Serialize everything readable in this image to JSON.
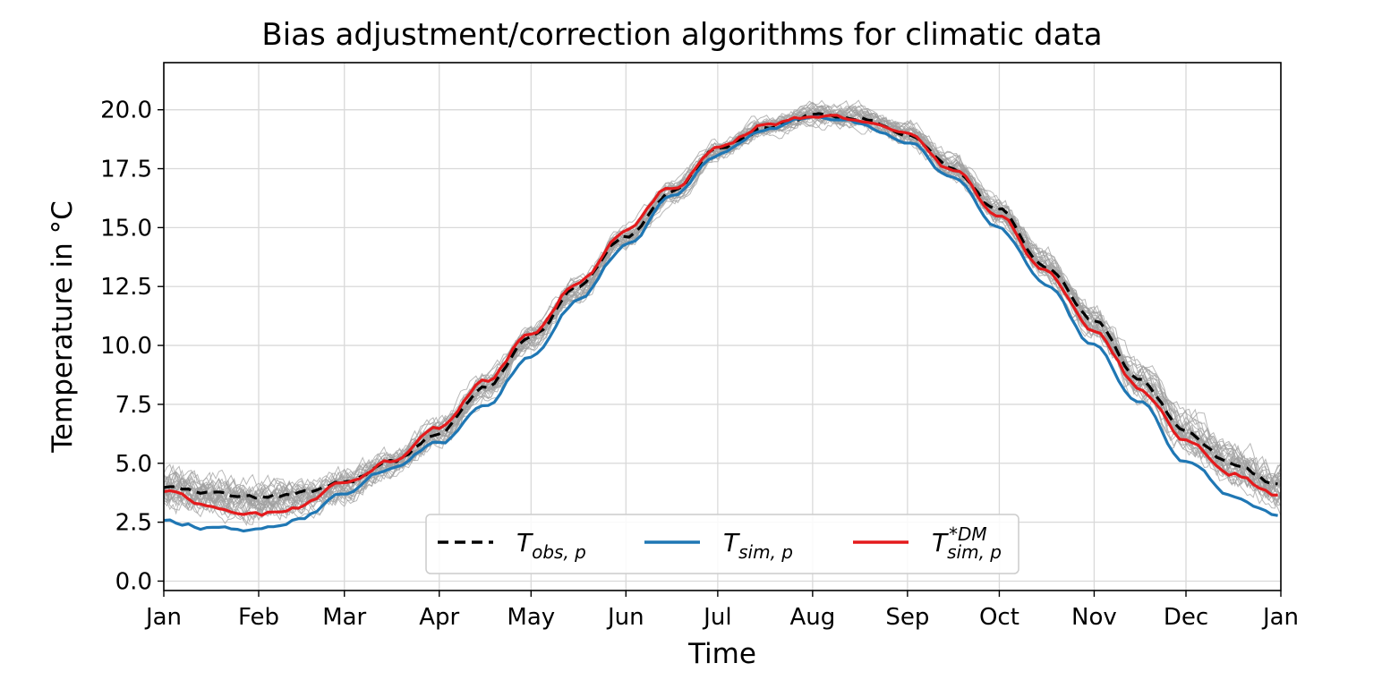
{
  "chart_data": {
    "type": "line",
    "title": "Bias adjustment/correction algorithms for climatic data",
    "xlabel": "Time",
    "ylabel": "Temperature in °C",
    "x_ticks": [
      "Jan",
      "Feb",
      "Mar",
      "Apr",
      "May",
      "Jun",
      "Jul",
      "Aug",
      "Sep",
      "Oct",
      "Nov",
      "Dec",
      "Jan"
    ],
    "x_tick_days": [
      1,
      32,
      60,
      91,
      121,
      152,
      182,
      213,
      244,
      274,
      305,
      335,
      366
    ],
    "xlim": [
      1,
      366
    ],
    "ylim": [
      -0.4,
      22.0
    ],
    "y_ticks": [
      0.0,
      2.5,
      5.0,
      7.5,
      10.0,
      12.5,
      15.0,
      17.5,
      20.0
    ],
    "y_tick_labels": [
      "0.0",
      "2.5",
      "5.0",
      "7.5",
      "10.0",
      "12.5",
      "15.0",
      "17.5",
      "20.0"
    ],
    "grid": true,
    "legend_position": "bottom-center",
    "x_day_keys": [
      1,
      15,
      32,
      46,
      60,
      75,
      91,
      106,
      121,
      136,
      152,
      167,
      182,
      198,
      213,
      228,
      244,
      259,
      274,
      289,
      305,
      320,
      335,
      350,
      366
    ],
    "series": [
      {
        "name": "T",
        "subscript": "obs, p",
        "superscript": "",
        "color": "#000000",
        "dash": "12,7",
        "width": 3.2,
        "values": [
          4.0,
          3.7,
          3.5,
          3.7,
          4.2,
          5.0,
          6.3,
          8.2,
          10.3,
          12.4,
          14.6,
          16.5,
          18.3,
          19.3,
          19.8,
          19.7,
          19.0,
          17.6,
          15.7,
          13.4,
          11.0,
          8.5,
          6.3,
          5.0,
          4.0
        ]
      },
      {
        "name": "T",
        "subscript": "sim, p",
        "superscript": "",
        "color": "#1f77b4",
        "dash": "",
        "width": 3.2,
        "values": [
          2.5,
          2.3,
          2.2,
          2.7,
          3.7,
          4.7,
          5.8,
          7.5,
          9.6,
          11.9,
          14.2,
          16.2,
          18.1,
          19.2,
          19.6,
          19.4,
          18.6,
          17.1,
          15.0,
          12.6,
          10.0,
          7.5,
          5.0,
          3.7,
          2.7
        ]
      },
      {
        "name": "T",
        "subscript": "sim, p",
        "superscript": "*DM",
        "color": "#e41a1c",
        "dash": "",
        "width": 3.2,
        "values": [
          3.8,
          3.2,
          2.8,
          3.2,
          4.2,
          5.1,
          6.5,
          8.4,
          10.5,
          12.6,
          14.8,
          16.7,
          18.4,
          19.4,
          19.7,
          19.6,
          18.9,
          17.4,
          15.5,
          13.1,
          10.7,
          8.2,
          6.0,
          4.6,
          3.6
        ]
      }
    ],
    "ensemble_color": "#a0a0a0",
    "ensemble_count": 30
  }
}
